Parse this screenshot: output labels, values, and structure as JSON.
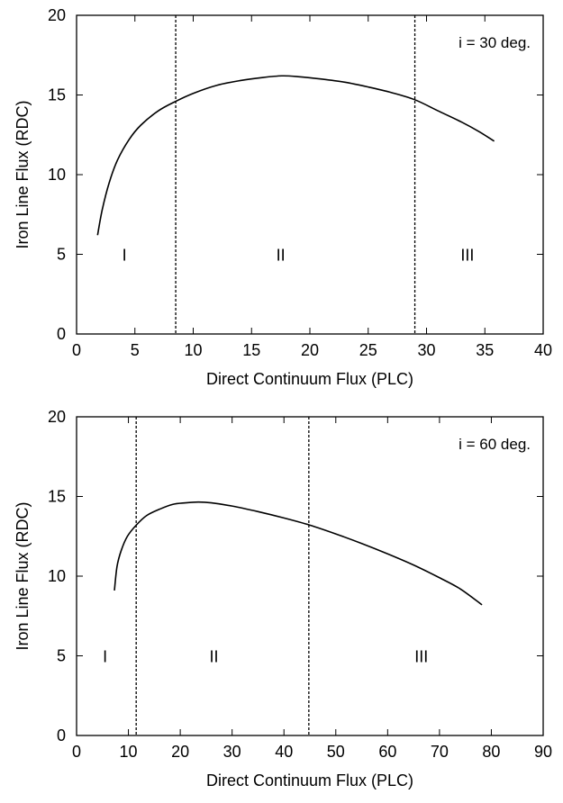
{
  "chart_data": [
    {
      "type": "line",
      "xlabel": "Direct Continuum Flux (PLC)",
      "ylabel": "Iron Line Flux (RDC)",
      "xlim": [
        0,
        40
      ],
      "ylim": [
        0,
        20
      ],
      "xticks": [
        0,
        5,
        10,
        15,
        20,
        25,
        30,
        35,
        40
      ],
      "yticks": [
        0,
        5,
        10,
        15,
        20
      ],
      "grid": false,
      "annotation": "i = 30 deg.",
      "vlines": [
        8.5,
        29.0
      ],
      "regions": [
        {
          "label": "I",
          "x": 4.1,
          "y": 5
        },
        {
          "label": "II",
          "x": 17.5,
          "y": 5
        },
        {
          "label": "III",
          "x": 33.5,
          "y": 5
        }
      ],
      "series": [
        {
          "x": [
            1.8,
            2.2,
            2.8,
            3.5,
            4.5,
            5.5,
            7.0,
            8.5,
            10,
            12,
            14,
            16,
            17.6,
            19,
            21,
            23,
            25,
            27,
            29,
            31,
            33,
            34.5,
            35.8
          ],
          "values": [
            6.2,
            7.8,
            9.5,
            10.9,
            12.2,
            13.1,
            14.0,
            14.6,
            15.1,
            15.6,
            15.9,
            16.1,
            16.2,
            16.15,
            16.0,
            15.8,
            15.5,
            15.15,
            14.7,
            14.0,
            13.3,
            12.7,
            12.1
          ]
        }
      ]
    },
    {
      "type": "line",
      "xlabel": "Direct Continuum Flux (PLC)",
      "ylabel": "Iron Line Flux (RDC)",
      "xlim": [
        0,
        90
      ],
      "ylim": [
        0,
        20
      ],
      "xticks": [
        0,
        10,
        20,
        30,
        40,
        50,
        60,
        70,
        80,
        90
      ],
      "yticks": [
        0,
        5,
        10,
        15,
        20
      ],
      "grid": false,
      "annotation": "i = 60 deg.",
      "vlines": [
        11.5,
        44.8
      ],
      "regions": [
        {
          "label": "I",
          "x": 5.5,
          "y": 5
        },
        {
          "label": "II",
          "x": 26.5,
          "y": 5
        },
        {
          "label": "III",
          "x": 66.5,
          "y": 5
        }
      ],
      "series": [
        {
          "x": [
            7.3,
            7.8,
            8.6,
            9.8,
            11.5,
            13.5,
            16,
            18.5,
            21,
            23.5,
            26,
            30,
            35,
            40,
            45,
            50,
            55,
            60,
            65,
            70,
            74,
            78.2
          ],
          "values": [
            9.1,
            10.6,
            11.6,
            12.5,
            13.2,
            13.8,
            14.2,
            14.5,
            14.6,
            14.65,
            14.6,
            14.4,
            14.05,
            13.65,
            13.2,
            12.65,
            12.05,
            11.4,
            10.7,
            9.9,
            9.2,
            8.2
          ]
        }
      ]
    }
  ]
}
